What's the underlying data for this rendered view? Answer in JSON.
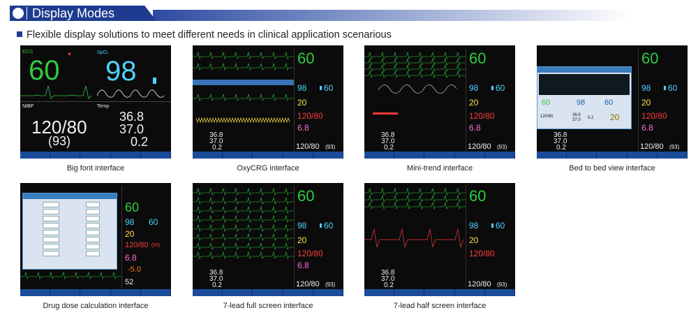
{
  "header": {
    "title": "Display Modes"
  },
  "subtitle": "Flexible display solutions to meet different needs in clinical application scenarious",
  "panels": [
    {
      "caption": "Big font interface",
      "ecg_label": "ECG",
      "hr": "60",
      "spo2_label": "SpO₂",
      "spo2": "98",
      "nibp_label": "NIBP",
      "nibp": "120/80",
      "nibp_mean": "(93)",
      "temp_label": "Temp",
      "t1": "36.8",
      "t2": "37.0",
      "td": "0.2"
    },
    {
      "caption": "OxyCRG interface",
      "hr": "60",
      "spo2": "98",
      "pr": "60",
      "resp": "20",
      "nibp": "120/80",
      "co2": "6.8",
      "t1": "36.8",
      "t2": "37.0",
      "td": "0.2",
      "nibp_bottom": "120/80",
      "nibp_mean": "(93)"
    },
    {
      "caption": "Mini-trend interface",
      "hr": "60",
      "spo2": "98",
      "pr": "60",
      "resp": "20",
      "nibp": "120/80",
      "co2": "6.8",
      "t1": "36.8",
      "t2": "37.0",
      "td": "0.2",
      "nibp_bottom": "120/80",
      "nibp_mean": "(93)"
    },
    {
      "caption": "Bed to bed view interface",
      "hr": "60",
      "spo2": "98",
      "pr": "60",
      "resp": "20",
      "nibp": "120/80",
      "co2": "6.8",
      "b_hr": "60",
      "b_spo2": "98",
      "b_pr": "60",
      "b_nibp": "120/80",
      "b_t1": "36.8",
      "b_t2": "37.0",
      "b_td": "0.2",
      "b_resp": "20",
      "t1": "36.8",
      "t2": "37.0",
      "td": "0.2",
      "nibp_bottom": "120/80",
      "nibp_mean": "(93)"
    },
    {
      "caption": "Drug dose calculation interface",
      "hr": "60",
      "spo2": "98",
      "pr": "60",
      "resp": "20",
      "nibp": "120/80",
      "nibp_mean": "(93)",
      "co2": "6.8",
      "st": "-5.0",
      "val52": "52"
    },
    {
      "caption": "7-lead full screen interface",
      "hr": "60",
      "spo2": "98",
      "pr": "60",
      "resp": "20",
      "nibp": "120/80",
      "co2": "6.8",
      "t1": "36.8",
      "t2": "37.0",
      "td": "0.2",
      "nibp_bottom": "120/80",
      "nibp_mean": "(93)"
    },
    {
      "caption": "7-lead half screen interface",
      "hr": "60",
      "spo2": "98",
      "pr": "60",
      "resp": "20",
      "nibp": "120/80",
      "t1": "36.8",
      "t2": "37.0",
      "td": "0.2",
      "nibp_bottom": "120/80",
      "nibp_mean": "(93)"
    }
  ],
  "colors": {
    "ecg": "#2ecc40",
    "spo2": "#4fd2ff",
    "resp": "#ffe14d",
    "nibp_red": "#ff3b3b",
    "co2": "#ff6ad5",
    "white": "#f2f2f2",
    "toolbar": "#1a4c9a",
    "header": "#1d3c8f"
  }
}
